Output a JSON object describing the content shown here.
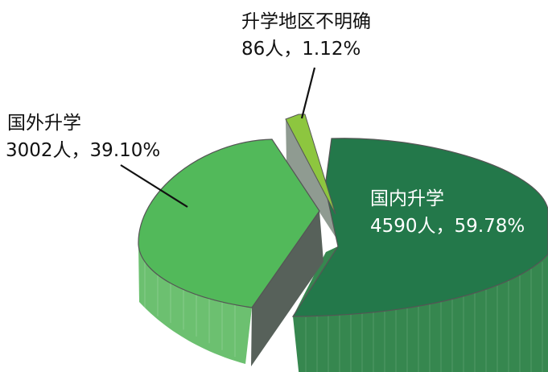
{
  "chart_data": {
    "type": "pie",
    "style": "3d-exploded",
    "slices": [
      {
        "name": "国内升学",
        "count": "4590人",
        "percent_label": "59.78%",
        "value": 4590,
        "percent": 59.78,
        "color": "#23784a",
        "label_color": "#ffffff"
      },
      {
        "name": "国外升学",
        "count": "3002人",
        "percent_label": "39.10%",
        "value": 3002,
        "percent": 39.1,
        "color": "#52b95a",
        "label_color": "#111111"
      },
      {
        "name": "升学地区不明确",
        "count": "86人",
        "percent_label": "1.12%",
        "value": 86,
        "percent": 1.12,
        "color": "#8dc63f",
        "label_color": "#111111"
      }
    ],
    "separator": "，"
  }
}
